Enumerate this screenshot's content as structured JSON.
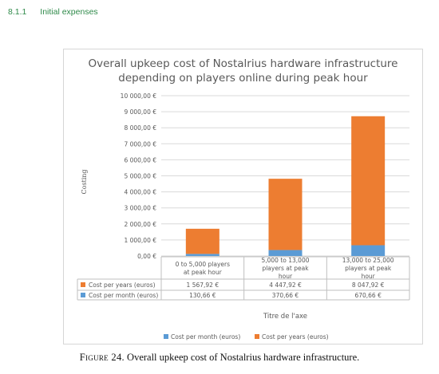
{
  "section": {
    "number": "8.1.1",
    "title": "Initial expenses"
  },
  "figure": {
    "label": "Figure 24.",
    "caption": "Overall upkeep cost of Nostalrius hardware infrastructure."
  },
  "colors": {
    "per_years": "#ed7d31",
    "per_month": "#5b9bd5",
    "grid": "#d9d9d9",
    "text": "#595959"
  },
  "chart_data": {
    "type": "bar",
    "stacked": true,
    "title_lines": [
      "Overall upkeep cost of Nostalrius hardware infrastructure",
      "depending on players online during peak hour"
    ],
    "xlabel": "Titre de l'axe",
    "ylabel": "Costing",
    "ylim": [
      0,
      10000
    ],
    "ytick_labels": [
      "0,00 €",
      "1 000,00 €",
      "2 000,00 €",
      "3 000,00 €",
      "4 000,00 €",
      "5 000,00 €",
      "6 000,00 €",
      "7 000,00 €",
      "8 000,00 €",
      "9 000,00 €",
      "10 000,00 €"
    ],
    "categories": [
      [
        "0 to 5,000 players",
        "at peak hour"
      ],
      [
        "5,000 to 13,000",
        "players at peak",
        "hour"
      ],
      [
        "13,000 to 25,000",
        "players at peak",
        "hour"
      ]
    ],
    "series": [
      {
        "name": "Cost per month (euros)",
        "values": [
          130.66,
          370.66,
          670.66
        ],
        "labels": [
          "130,66 €",
          "370,66 €",
          "670,66 €"
        ]
      },
      {
        "name": "Cost per years (euros)",
        "values": [
          1567.92,
          4447.92,
          8047.92
        ],
        "labels": [
          "1 567,92 €",
          "4 447,92 €",
          "8 047,92 €"
        ]
      }
    ],
    "table_rows": [
      "Cost per years (euros)",
      "Cost per month (euros)"
    ],
    "legend_position": "bottom",
    "grid": true
  }
}
